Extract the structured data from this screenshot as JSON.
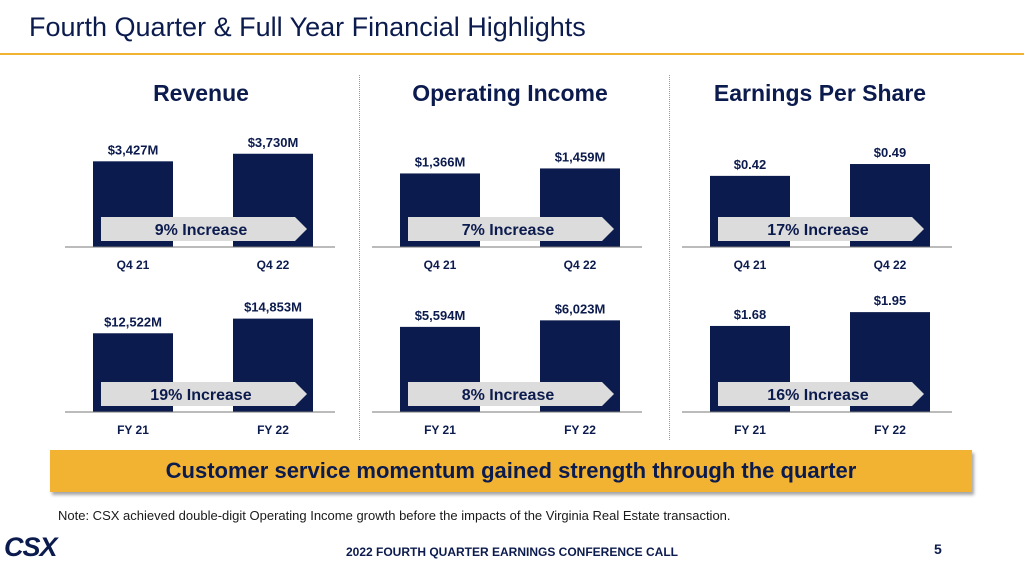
{
  "slide": {
    "title": "Fourth Quarter & Full Year Financial Highlights",
    "banner": "Customer service momentum gained strength through the quarter",
    "note": "Note: CSX achieved double-digit Operating Income growth before the impacts of the Virginia Real Estate transaction.",
    "footer": "2022 FOURTH QUARTER EARNINGS CONFERENCE CALL",
    "page_number": "5",
    "logo_text": "CSX"
  },
  "colors": {
    "bar": "#0c1b4d",
    "accent": "#f2b333",
    "arrow": "#dcdcdc",
    "baseline": "#777777"
  },
  "columns": [
    {
      "heading": "Revenue"
    },
    {
      "heading": "Operating Income"
    },
    {
      "heading": "Earnings Per Share"
    }
  ],
  "chart_data": [
    {
      "type": "bar",
      "title": "Revenue",
      "period": "Quarter",
      "categories": [
        "Q4 21",
        "Q4 22"
      ],
      "values": [
        3427,
        3730
      ],
      "labels": [
        "$3,427M",
        "$3,730M"
      ],
      "unit": "$M",
      "ylim": [
        0,
        4200
      ],
      "arrow": "9% Increase"
    },
    {
      "type": "bar",
      "title": "Revenue",
      "period": "Full Year",
      "categories": [
        "FY 21",
        "FY 22"
      ],
      "values": [
        12522,
        14853
      ],
      "labels": [
        "$12,522M",
        "$14,853M"
      ],
      "unit": "$M",
      "ylim": [
        0,
        16700
      ],
      "arrow": "19% Increase"
    },
    {
      "type": "bar",
      "title": "Operating Income",
      "period": "Quarter",
      "categories": [
        "Q4 21",
        "Q4 22"
      ],
      "values": [
        1366,
        1459
      ],
      "labels": [
        "$1,366M",
        "$1,459M"
      ],
      "unit": "$M",
      "ylim": [
        0,
        1950
      ],
      "arrow": "7% Increase"
    },
    {
      "type": "bar",
      "title": "Operating Income",
      "period": "Full Year",
      "categories": [
        "FY 21",
        "FY 22"
      ],
      "values": [
        5594,
        6023
      ],
      "labels": [
        "$5,594M",
        "$6,023M"
      ],
      "unit": "$M",
      "ylim": [
        0,
        6900
      ],
      "arrow": "8% Increase"
    },
    {
      "type": "bar",
      "title": "Earnings Per Share",
      "period": "Quarter",
      "categories": [
        "Q4 21",
        "Q4 22"
      ],
      "values": [
        0.42,
        0.49
      ],
      "labels": [
        "$0.42",
        "$0.49"
      ],
      "unit": "$",
      "ylim": [
        0,
        0.62
      ],
      "arrow": "17% Increase"
    },
    {
      "type": "bar",
      "title": "Earnings Per Share",
      "period": "Full Year",
      "categories": [
        "FY 21",
        "FY 22"
      ],
      "values": [
        1.68,
        1.95
      ],
      "labels": [
        "$1.68",
        "$1.95"
      ],
      "unit": "$",
      "ylim": [
        0,
        2.05
      ],
      "arrow": "16% Increase"
    }
  ]
}
